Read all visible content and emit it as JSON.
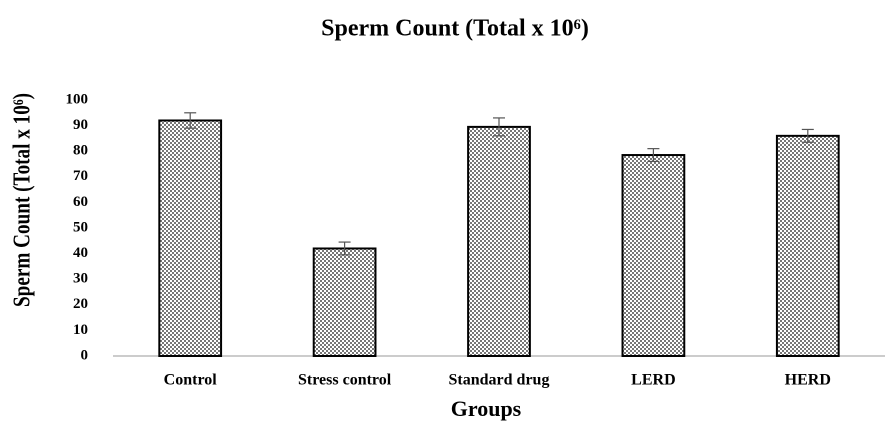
{
  "chart_data": {
    "type": "bar",
    "title": "Sperm Count (Total x 10⁶)",
    "x_label": "Groups",
    "y_label": "Sperm Count (Total x 10⁶)",
    "categories": [
      "Control",
      "Stress control",
      "Standard drug",
      "LERD",
      "HERD"
    ],
    "values": [
      92,
      42,
      89.5,
      78.5,
      86
    ],
    "errors": [
      3,
      2.5,
      3.5,
      2.5,
      2.5
    ],
    "color": "#555555",
    "ylim": [
      0,
      100
    ],
    "yticks": [
      0,
      10,
      20,
      30,
      40,
      50,
      60,
      70,
      80,
      90,
      100
    ],
    "grid": false
  }
}
